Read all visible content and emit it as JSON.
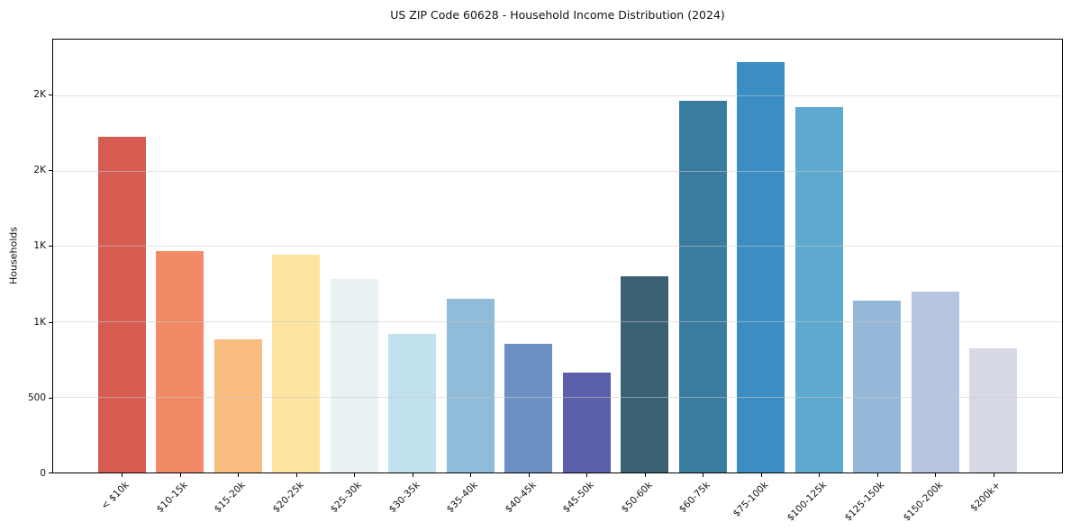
{
  "chart_data": {
    "type": "bar",
    "title": "US ZIP Code 60628 - Household Income Distribution (2024)",
    "xlabel": "",
    "ylabel": "Households",
    "categories": [
      "< $10k",
      "$10-15k",
      "$15-20k",
      "$20-25k",
      "$25-30k",
      "$30-35k",
      "$35-40k",
      "$40-45k",
      "$45-50k",
      "$50-60k",
      "$60-75k",
      "$75-100k",
      "$100-125k",
      "$125-150k",
      "$150-200k",
      "$200k+"
    ],
    "values": [
      2225,
      1465,
      885,
      1445,
      1285,
      920,
      1150,
      850,
      660,
      1300,
      2465,
      2720,
      2420,
      1140,
      1200,
      825
    ],
    "bar_colors": [
      "#d65c51",
      "#f28a67",
      "#f9bd7f",
      "#fde5a1",
      "#e8f2f3",
      "#c2e1ee",
      "#90bbd9",
      "#6c90c2",
      "#5b5fab",
      "#3a6173",
      "#3a7ba0",
      "#3a8ec4",
      "#5ea9d0",
      "#95b7d8",
      "#b7c5e0",
      "#d8d9e7"
    ],
    "ylim": [
      0,
      2868
    ],
    "yticks": {
      "values": [
        0,
        500,
        1000,
        1500,
        2000,
        2500
      ],
      "labels": [
        "0",
        "500",
        "1K",
        "1K",
        "2K",
        "2K"
      ]
    },
    "grid": "horizontal",
    "legend": "none",
    "background_color": "#ffffff",
    "spine_color": "#000000",
    "gridline_color": "#cbcbcb",
    "text_color": "#111111"
  }
}
